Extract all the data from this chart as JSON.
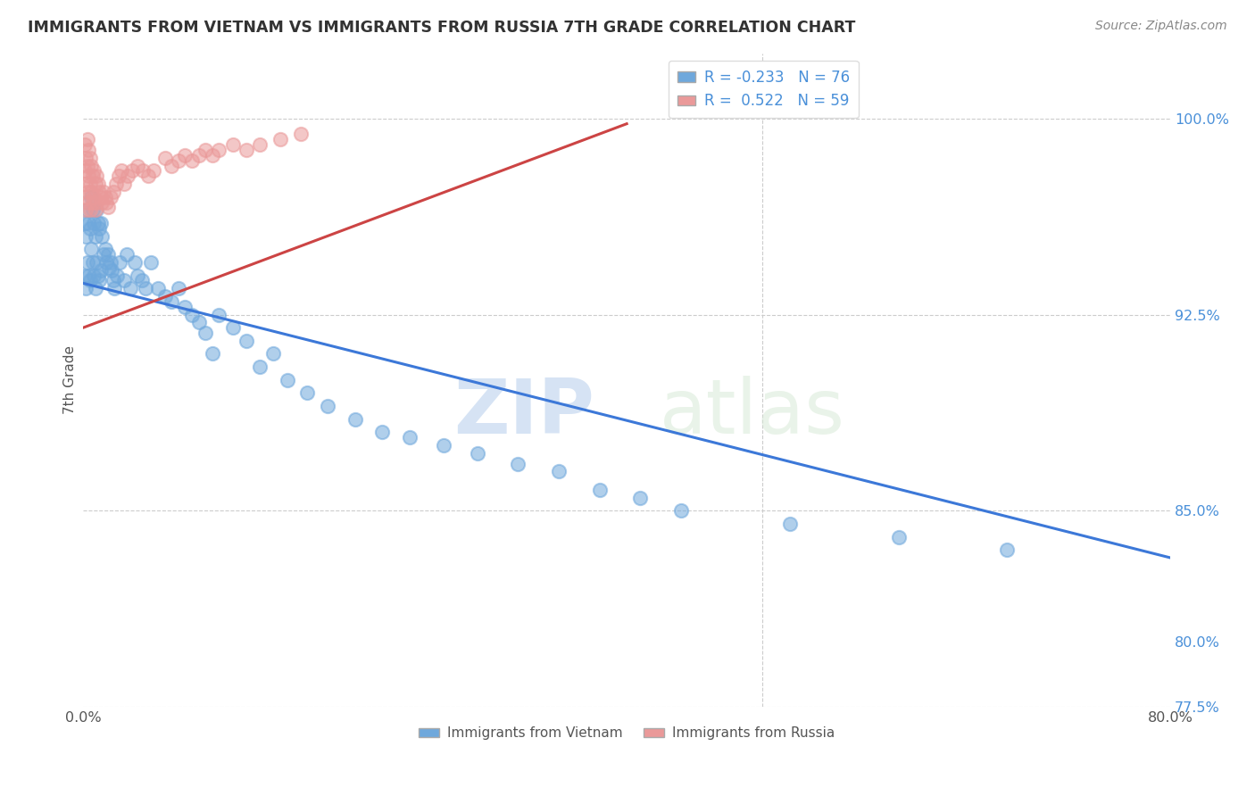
{
  "title": "IMMIGRANTS FROM VIETNAM VS IMMIGRANTS FROM RUSSIA 7TH GRADE CORRELATION CHART",
  "source": "Source: ZipAtlas.com",
  "ylabel": "7th Grade",
  "color_vietnam": "#6fa8dc",
  "color_russia": "#ea9999",
  "color_trendline_vietnam": "#3c78d8",
  "color_trendline_russia": "#cc4444",
  "legend_r_vietnam": "-0.233",
  "legend_n_vietnam": "76",
  "legend_r_russia": "0.522",
  "legend_n_russia": "59",
  "watermark_zip": "ZIP",
  "watermark_atlas": "atlas",
  "xlim": [
    0.0,
    0.8
  ],
  "ylim": [
    0.795,
    1.025
  ],
  "ytick_values": [
    0.775,
    0.8,
    0.85,
    0.925,
    1.0
  ],
  "ytick_labels": [
    "77.5%",
    "80.0%",
    "85.0%",
    "92.5%",
    "100.0%"
  ],
  "xtick_values": [
    0.0,
    0.2,
    0.4,
    0.6,
    0.8
  ],
  "xtick_labels": [
    "0.0%",
    "",
    "",
    "",
    "80.0%"
  ],
  "grid_values": [
    0.775,
    0.85,
    0.925,
    1.0
  ],
  "vline_x": 0.5,
  "vietnam_x": [
    0.001,
    0.001,
    0.002,
    0.002,
    0.003,
    0.003,
    0.004,
    0.004,
    0.005,
    0.005,
    0.006,
    0.006,
    0.007,
    0.007,
    0.008,
    0.008,
    0.009,
    0.009,
    0.01,
    0.01,
    0.011,
    0.011,
    0.012,
    0.012,
    0.013,
    0.013,
    0.014,
    0.015,
    0.016,
    0.017,
    0.018,
    0.019,
    0.02,
    0.021,
    0.022,
    0.023,
    0.025,
    0.027,
    0.03,
    0.032,
    0.035,
    0.038,
    0.04,
    0.043,
    0.046,
    0.05,
    0.055,
    0.06,
    0.065,
    0.07,
    0.075,
    0.08,
    0.085,
    0.09,
    0.095,
    0.1,
    0.11,
    0.12,
    0.13,
    0.14,
    0.15,
    0.165,
    0.18,
    0.2,
    0.22,
    0.24,
    0.265,
    0.29,
    0.32,
    0.35,
    0.38,
    0.41,
    0.44,
    0.52,
    0.6,
    0.68
  ],
  "vietnam_y": [
    0.96,
    0.94,
    0.955,
    0.935,
    0.965,
    0.945,
    0.96,
    0.94,
    0.958,
    0.938,
    0.97,
    0.95,
    0.965,
    0.945,
    0.96,
    0.94,
    0.955,
    0.935,
    0.965,
    0.945,
    0.96,
    0.94,
    0.958,
    0.938,
    0.96,
    0.942,
    0.955,
    0.948,
    0.95,
    0.945,
    0.948,
    0.943,
    0.945,
    0.942,
    0.938,
    0.935,
    0.94,
    0.945,
    0.938,
    0.948,
    0.935,
    0.945,
    0.94,
    0.938,
    0.935,
    0.945,
    0.935,
    0.932,
    0.93,
    0.935,
    0.928,
    0.925,
    0.922,
    0.918,
    0.91,
    0.925,
    0.92,
    0.915,
    0.905,
    0.91,
    0.9,
    0.895,
    0.89,
    0.885,
    0.88,
    0.878,
    0.875,
    0.872,
    0.868,
    0.865,
    0.858,
    0.855,
    0.85,
    0.845,
    0.84,
    0.835
  ],
  "russia_x": [
    0.001,
    0.001,
    0.001,
    0.002,
    0.002,
    0.002,
    0.003,
    0.003,
    0.003,
    0.004,
    0.004,
    0.004,
    0.005,
    0.005,
    0.005,
    0.006,
    0.006,
    0.007,
    0.007,
    0.008,
    0.008,
    0.009,
    0.009,
    0.01,
    0.01,
    0.011,
    0.012,
    0.013,
    0.014,
    0.015,
    0.016,
    0.017,
    0.018,
    0.02,
    0.022,
    0.024,
    0.026,
    0.028,
    0.03,
    0.033,
    0.036,
    0.04,
    0.044,
    0.048,
    0.052,
    0.06,
    0.065,
    0.07,
    0.075,
    0.08,
    0.085,
    0.09,
    0.095,
    0.1,
    0.11,
    0.12,
    0.13,
    0.145,
    0.16
  ],
  "russia_y": [
    0.99,
    0.98,
    0.97,
    0.985,
    0.975,
    0.965,
    0.992,
    0.982,
    0.972,
    0.988,
    0.978,
    0.968,
    0.985,
    0.975,
    0.965,
    0.982,
    0.972,
    0.978,
    0.968,
    0.98,
    0.97,
    0.975,
    0.965,
    0.978,
    0.968,
    0.975,
    0.972,
    0.97,
    0.968,
    0.972,
    0.97,
    0.968,
    0.966,
    0.97,
    0.972,
    0.975,
    0.978,
    0.98,
    0.975,
    0.978,
    0.98,
    0.982,
    0.98,
    0.978,
    0.98,
    0.985,
    0.982,
    0.984,
    0.986,
    0.984,
    0.986,
    0.988,
    0.986,
    0.988,
    0.99,
    0.988,
    0.99,
    0.992,
    0.994
  ],
  "trendline_v_x0": 0.0,
  "trendline_v_x1": 0.8,
  "trendline_v_y0": 0.937,
  "trendline_v_y1": 0.832,
  "trendline_r_x0": 0.0,
  "trendline_r_x1": 0.4,
  "trendline_r_y0": 0.92,
  "trendline_r_y1": 0.998
}
